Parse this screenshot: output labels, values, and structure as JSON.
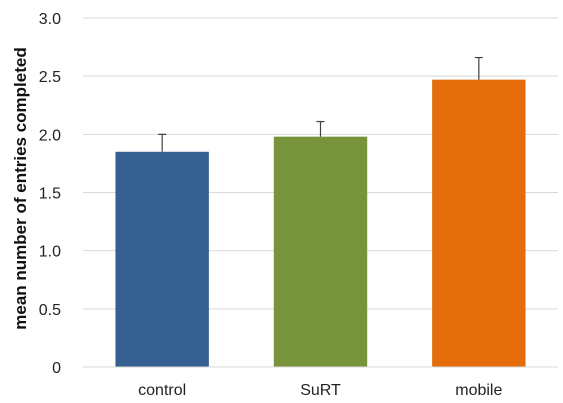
{
  "chart_data": {
    "type": "bar",
    "categories": [
      "control",
      "SuRT",
      "mobile"
    ],
    "values": [
      1.85,
      1.98,
      2.47
    ],
    "error_upper": [
      0.15,
      0.13,
      0.19
    ],
    "colors": [
      "#36608f",
      "#77933c",
      "#e46c0a"
    ],
    "title": "",
    "xlabel": "",
    "ylabel": "mean number of entries completed",
    "ylim": [
      0,
      3.0
    ],
    "yticks": [
      {
        "value": 0,
        "label": "0"
      },
      {
        "value": 0.5,
        "label": "0.5"
      },
      {
        "value": 1.0,
        "label": "1.0"
      },
      {
        "value": 1.5,
        "label": "1.5"
      },
      {
        "value": 2.0,
        "label": "2.0"
      },
      {
        "value": 2.5,
        "label": "2.5"
      },
      {
        "value": 3.0,
        "label": "3.0"
      }
    ],
    "grid": true,
    "legend": "none",
    "grid_color": "#d9d9d9",
    "error_bar_color": "#404040"
  }
}
